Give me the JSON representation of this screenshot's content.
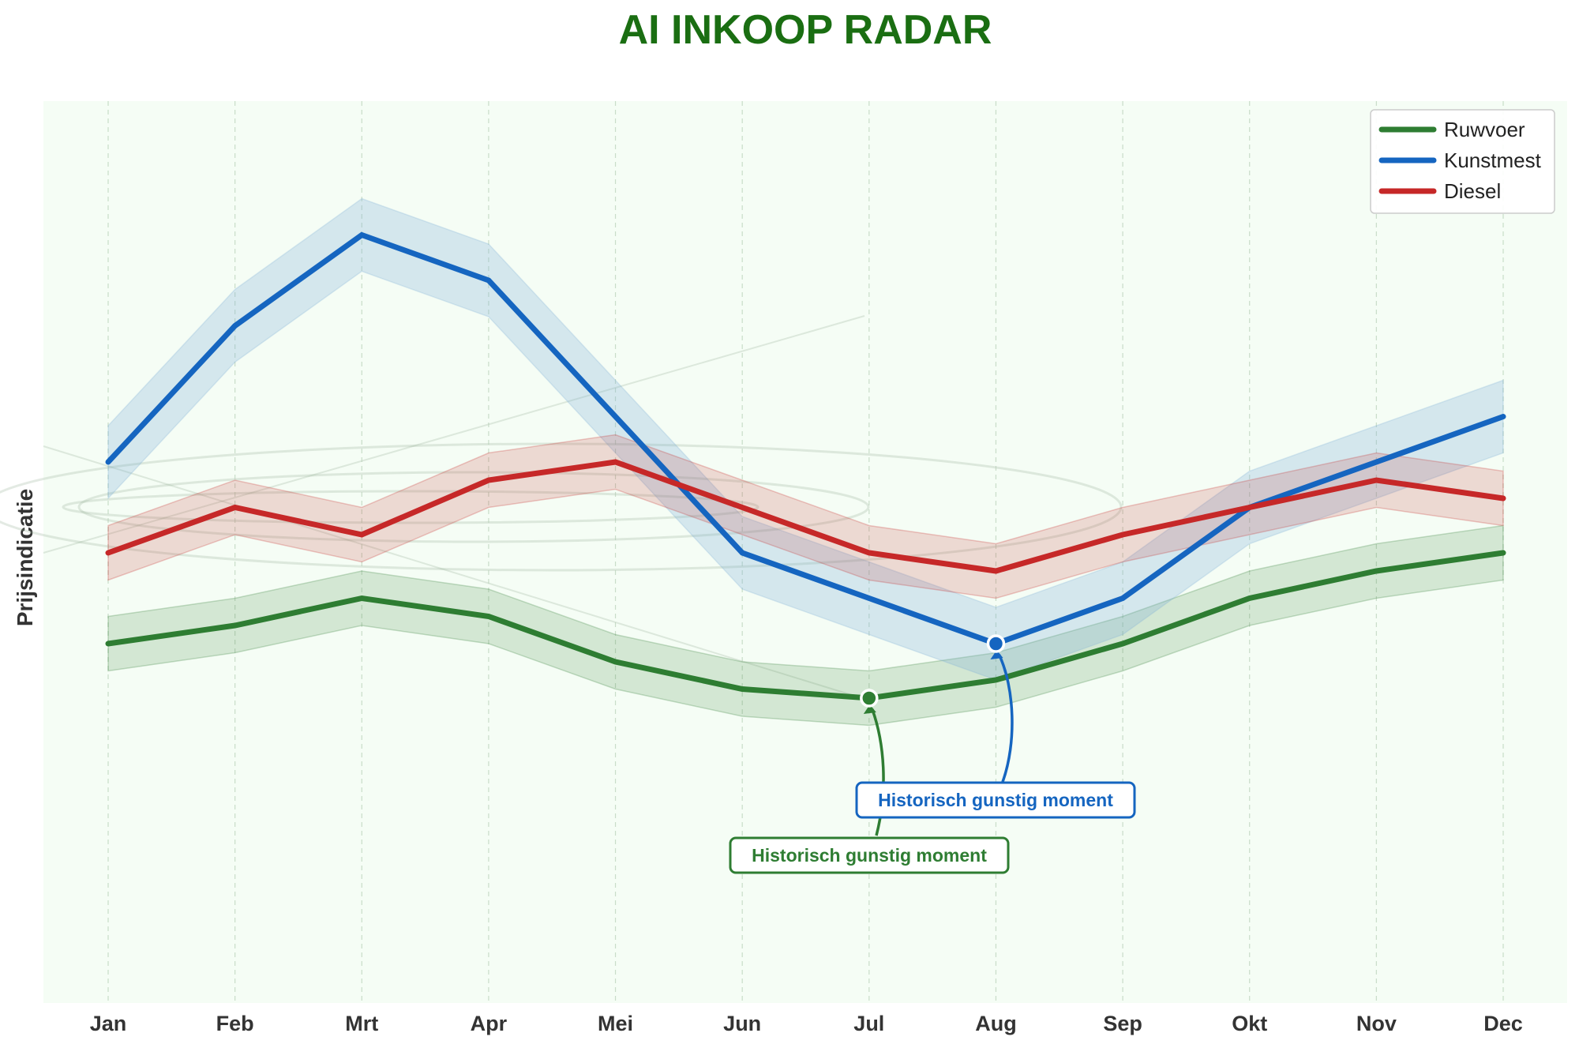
{
  "chart_data": {
    "type": "line",
    "title": "AI INKOOP RADAR",
    "xlabel": "",
    "ylabel": "Prijsindicatie",
    "categories": [
      "Jan",
      "Feb",
      "Mrt",
      "Apr",
      "Mei",
      "Jun",
      "Jul",
      "Aug",
      "Sep",
      "Okt",
      "Nov",
      "Dec"
    ],
    "ylim": [
      0,
      100
    ],
    "grid": "vertical dashed",
    "legend_position": "top-right",
    "series": [
      {
        "name": "Ruwvoer",
        "color": "#2e7d32",
        "band": 3,
        "values": [
          40,
          42,
          45,
          43,
          38,
          35,
          34,
          36,
          40,
          45,
          48,
          50
        ]
      },
      {
        "name": "Kunstmest",
        "color": "#1565c0",
        "band": 4,
        "values": [
          60,
          75,
          85,
          80,
          65,
          50,
          45,
          40,
          45,
          55,
          60,
          65
        ]
      },
      {
        "name": "Diesel",
        "color": "#c62828",
        "band": 3,
        "values": [
          50,
          55,
          52,
          58,
          60,
          55,
          50,
          48,
          52,
          55,
          58,
          56
        ]
      }
    ],
    "annotations": [
      {
        "text": "Historisch gunstig moment",
        "series": "Ruwvoer",
        "month": "Jul",
        "value": 34,
        "color": "#2e7d32"
      },
      {
        "text": "Historisch gunstig moment",
        "series": "Kunstmest",
        "month": "Aug",
        "value": 40,
        "color": "#1565c0"
      }
    ]
  }
}
